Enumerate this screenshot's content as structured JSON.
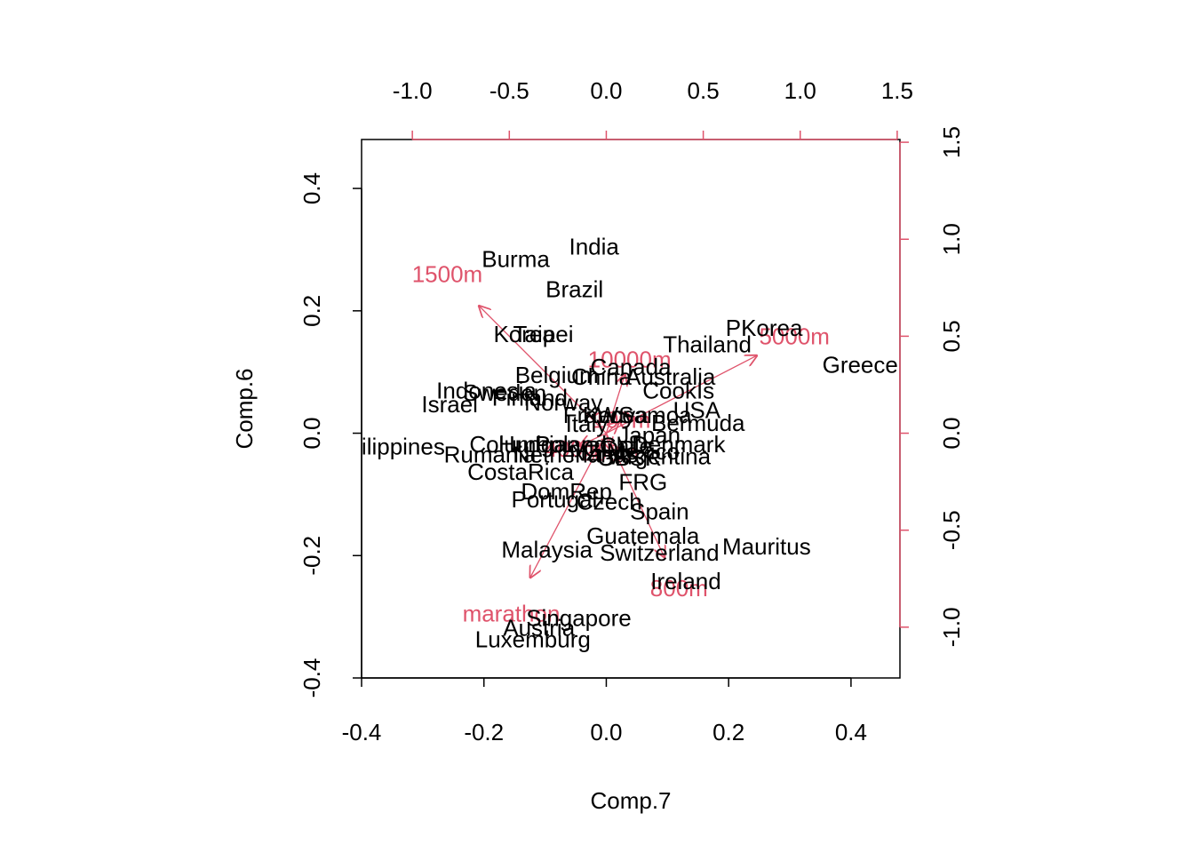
{
  "chart_data": {
    "type": "biplot",
    "xlabel": "Comp.7",
    "ylabel": "Comp.6",
    "xlim": [
      -0.4,
      0.48
    ],
    "ylim": [
      -0.4,
      0.48
    ],
    "x_ticks": [
      -0.4,
      -0.2,
      0.0,
      0.2,
      0.4
    ],
    "y_ticks": [
      -0.4,
      -0.2,
      0.0,
      0.2,
      0.4
    ],
    "top_ticks": [
      -1.0,
      -0.5,
      0.0,
      0.5,
      1.0,
      1.5
    ],
    "right_ticks": [
      -1.0,
      -0.5,
      0.0,
      0.5,
      1.0,
      1.5
    ],
    "arrow_scale": 0.317,
    "grid": false,
    "colors": {
      "observations": "#000000",
      "loadings": "#DF536B",
      "axes": "#000000"
    },
    "observations": [
      {
        "name": "India",
        "x": -0.02,
        "y": 0.305
      },
      {
        "name": "Burma",
        "x": -0.148,
        "y": 0.285
      },
      {
        "name": "Brazil",
        "x": -0.052,
        "y": 0.235
      },
      {
        "name": "Korea",
        "x": -0.134,
        "y": 0.162
      },
      {
        "name": "Taipei",
        "x": -0.103,
        "y": 0.162
      },
      {
        "name": "PKorea",
        "x": 0.258,
        "y": 0.172
      },
      {
        "name": "Thailand",
        "x": 0.165,
        "y": 0.145
      },
      {
        "name": "Greece",
        "x": 0.415,
        "y": 0.112
      },
      {
        "name": "Canada",
        "x": 0.04,
        "y": 0.108
      },
      {
        "name": "Belgium",
        "x": -0.081,
        "y": 0.095
      },
      {
        "name": "China",
        "x": -0.008,
        "y": 0.092
      },
      {
        "name": "Australia",
        "x": 0.105,
        "y": 0.092
      },
      {
        "name": "Indonesia",
        "x": -0.196,
        "y": 0.07
      },
      {
        "name": "Sweden",
        "x": -0.166,
        "y": 0.066
      },
      {
        "name": "Israel",
        "x": -0.256,
        "y": 0.047
      },
      {
        "name": "Finland",
        "x": -0.125,
        "y": 0.058
      },
      {
        "name": "Norway",
        "x": -0.07,
        "y": 0.05
      },
      {
        "name": "CookIs",
        "x": 0.118,
        "y": 0.07
      },
      {
        "name": "USA",
        "x": 0.148,
        "y": 0.038
      },
      {
        "name": "WSamoa",
        "x": 0.062,
        "y": 0.03
      },
      {
        "name": "Kenya",
        "x": 0.015,
        "y": 0.03
      },
      {
        "name": "France",
        "x": -0.012,
        "y": 0.03
      },
      {
        "name": "Bermuda",
        "x": 0.15,
        "y": 0.017
      },
      {
        "name": "Italy",
        "x": -0.032,
        "y": 0.015
      },
      {
        "name": "Japan",
        "x": 0.07,
        "y": -0.003
      },
      {
        "name": "Denmark",
        "x": 0.118,
        "y": -0.018
      },
      {
        "name": "Philippines",
        "x": -0.355,
        "y": -0.022
      },
      {
        "name": "Columbia",
        "x": -0.144,
        "y": -0.018
      },
      {
        "name": "Hungary",
        "x": -0.105,
        "y": -0.018
      },
      {
        "name": "Poland",
        "x": -0.058,
        "y": -0.018
      },
      {
        "name": "Chile",
        "x": 0.032,
        "y": -0.02
      },
      {
        "name": "Mexico",
        "x": 0.06,
        "y": -0.03
      },
      {
        "name": "GDR",
        "x": 0.005,
        "y": -0.025
      },
      {
        "name": "Rumania",
        "x": -0.19,
        "y": -0.035
      },
      {
        "name": "NZ",
        "x": -0.035,
        "y": -0.032
      },
      {
        "name": "Netherlands",
        "x": -0.05,
        "y": -0.035
      },
      {
        "name": "Argentina",
        "x": 0.09,
        "y": -0.038
      },
      {
        "name": "USSR",
        "x": 0.038,
        "y": -0.04
      },
      {
        "name": "GB",
        "x": 0.012,
        "y": -0.04
      },
      {
        "name": "CostaRica",
        "x": -0.14,
        "y": -0.063
      },
      {
        "name": "FRG",
        "x": 0.06,
        "y": -0.08
      },
      {
        "name": "DomRep",
        "x": -0.065,
        "y": -0.095
      },
      {
        "name": "Portugal",
        "x": -0.085,
        "y": -0.108
      },
      {
        "name": "Czech",
        "x": 0.005,
        "y": -0.112
      },
      {
        "name": "Spain",
        "x": 0.087,
        "y": -0.128
      },
      {
        "name": "Guatemala",
        "x": 0.06,
        "y": -0.168
      },
      {
        "name": "Mauritus",
        "x": 0.262,
        "y": -0.185
      },
      {
        "name": "Malaysia",
        "x": -0.097,
        "y": -0.19
      },
      {
        "name": "Switzerland",
        "x": 0.087,
        "y": -0.195
      },
      {
        "name": "Ireland",
        "x": 0.13,
        "y": -0.242
      },
      {
        "name": "Singapore",
        "x": -0.045,
        "y": -0.302
      },
      {
        "name": "Austria",
        "x": -0.11,
        "y": -0.318
      },
      {
        "name": "Luxemburg",
        "x": -0.12,
        "y": -0.337
      }
    ],
    "loadings": [
      {
        "name": "1500m",
        "x": -0.82,
        "y": 0.82
      },
      {
        "name": "5000m",
        "x": 0.97,
        "y": 0.5
      },
      {
        "name": "10000m",
        "x": 0.12,
        "y": 0.38
      },
      {
        "name": "800m",
        "x": 0.375,
        "y": -0.8
      },
      {
        "name": "marathon",
        "x": -0.49,
        "y": -0.93
      },
      {
        "name": "100m",
        "x": 0.08,
        "y": 0.07
      },
      {
        "name": "200m",
        "x": 0.02,
        "y": -0.1
      },
      {
        "name": "400m",
        "x": -0.17,
        "y": -0.08
      }
    ]
  }
}
